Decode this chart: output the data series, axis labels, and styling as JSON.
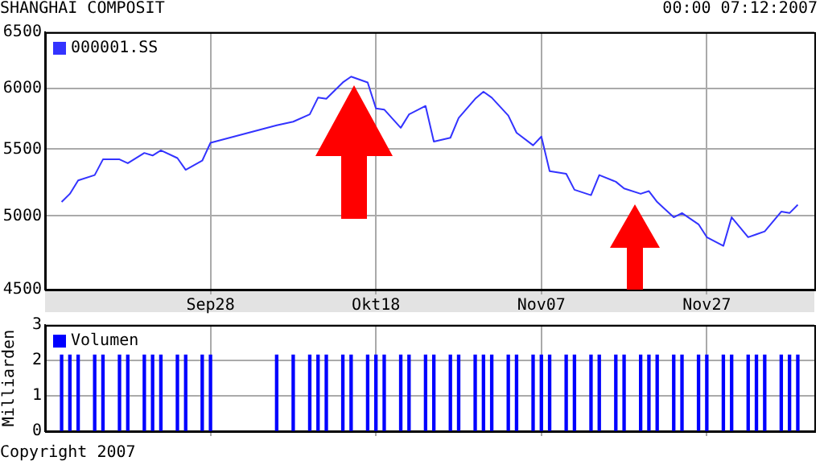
{
  "chart_data": [
    {
      "type": "line",
      "title": "SHANGHAI COMPOSIT",
      "annotations": [
        "00:00 07:12:2007"
      ],
      "x": [
        "2007-09-10",
        "2007-09-11",
        "2007-09-12",
        "2007-09-14",
        "2007-09-15",
        "2007-09-17",
        "2007-09-18",
        "2007-09-20",
        "2007-09-21",
        "2007-09-22",
        "2007-09-24",
        "2007-09-25",
        "2007-09-27",
        "2007-09-28",
        "2007-10-06",
        "2007-10-08",
        "2007-10-10",
        "2007-10-11",
        "2007-10-12",
        "2007-10-14",
        "2007-10-15",
        "2007-10-17",
        "2007-10-18",
        "2007-10-19",
        "2007-10-21",
        "2007-10-22",
        "2007-10-24",
        "2007-10-25",
        "2007-10-27",
        "2007-10-28",
        "2007-10-30",
        "2007-10-31",
        "2007-11-01",
        "2007-11-03",
        "2007-11-04",
        "2007-11-06",
        "2007-11-07",
        "2007-11-08",
        "2007-11-10",
        "2007-11-11",
        "2007-11-13",
        "2007-11-14",
        "2007-11-16",
        "2007-11-17",
        "2007-11-19",
        "2007-11-20",
        "2007-11-21",
        "2007-11-23",
        "2007-11-24",
        "2007-11-26",
        "2007-11-27",
        "2007-11-29",
        "2007-11-30",
        "2007-12-02",
        "2007-12-03",
        "2007-12-04",
        "2007-12-06",
        "2007-12-07",
        "2007-12-08"
      ],
      "series": [
        {
          "name": "000001.SS",
          "color": "#3333ff",
          "values": [
            5100,
            5160,
            5260,
            5300,
            5420,
            5420,
            5390,
            5470,
            5450,
            5490,
            5430,
            5340,
            5410,
            5550,
            5690,
            5720,
            5780,
            5920,
            5910,
            6050,
            6100,
            6050,
            5830,
            5820,
            5670,
            5780,
            5850,
            5560,
            5590,
            5750,
            5910,
            5970,
            5920,
            5770,
            5630,
            5530,
            5600,
            5330,
            5310,
            5190,
            5150,
            5300,
            5250,
            5200,
            5160,
            5180,
            5100,
            4990,
            5020,
            4940,
            4850,
            4790,
            4990,
            4850,
            4870,
            4890,
            5030,
            5020,
            5080
          ]
        }
      ],
      "xlim": [
        "2007-09-08",
        "2007-12-10"
      ],
      "xticks": [
        {
          "value": "2007-09-28",
          "label": "Sep28"
        },
        {
          "value": "2007-10-18",
          "label": "Okt18"
        },
        {
          "value": "2007-11-07",
          "label": "Nov07"
        },
        {
          "value": "2007-11-27",
          "label": "Nov27"
        }
      ],
      "ylim": [
        4500,
        6500
      ],
      "yticks": [
        4500,
        5000,
        5500,
        6000,
        6500
      ],
      "log": true,
      "grid": true,
      "legend": "top left"
    },
    {
      "type": "bar",
      "ylabel": "Milliarden",
      "annotations": [
        "Copyright 2007"
      ],
      "x": [
        "2007-09-10",
        "2007-09-11",
        "2007-09-12",
        "2007-09-14",
        "2007-09-15",
        "2007-09-17",
        "2007-09-18",
        "2007-09-20",
        "2007-09-21",
        "2007-09-22",
        "2007-09-24",
        "2007-09-25",
        "2007-09-27",
        "2007-09-28",
        "2007-10-06",
        "2007-10-08",
        "2007-10-10",
        "2007-10-11",
        "2007-10-12",
        "2007-10-14",
        "2007-10-15",
        "2007-10-17",
        "2007-10-18",
        "2007-10-19",
        "2007-10-21",
        "2007-10-22",
        "2007-10-24",
        "2007-10-25",
        "2007-10-27",
        "2007-10-28",
        "2007-10-30",
        "2007-10-31",
        "2007-11-01",
        "2007-11-03",
        "2007-11-04",
        "2007-11-06",
        "2007-11-07",
        "2007-11-08",
        "2007-11-10",
        "2007-11-11",
        "2007-11-13",
        "2007-11-14",
        "2007-11-16",
        "2007-11-17",
        "2007-11-19",
        "2007-11-20",
        "2007-11-21",
        "2007-11-23",
        "2007-11-24",
        "2007-11-26",
        "2007-11-27",
        "2007-11-29",
        "2007-11-30",
        "2007-12-02",
        "2007-12-03",
        "2007-12-04",
        "2007-12-06",
        "2007-12-07",
        "2007-12-08"
      ],
      "series": [
        {
          "name": "Volumen",
          "color": "#0000ff",
          "values": [
            2.15,
            2.15,
            2.15,
            2.15,
            2.15,
            2.15,
            2.15,
            2.15,
            2.15,
            2.15,
            2.15,
            2.15,
            2.15,
            2.15,
            2.15,
            2.15,
            2.15,
            2.15,
            2.15,
            2.15,
            2.15,
            2.15,
            2.15,
            2.15,
            2.15,
            2.15,
            2.15,
            2.15,
            2.15,
            2.15,
            2.15,
            2.15,
            2.15,
            2.15,
            2.15,
            2.15,
            2.15,
            2.15,
            2.15,
            2.15,
            2.15,
            2.15,
            2.15,
            2.15,
            2.15,
            2.15,
            2.15,
            2.15,
            2.15,
            2.15,
            2.15,
            2.15,
            2.15,
            2.15,
            2.15,
            2.15,
            2.15,
            2.15,
            2.15
          ]
        }
      ],
      "xlim": [
        "2007-09-08",
        "2007-12-10"
      ],
      "xticks": [
        {
          "value": "2007-09-28",
          "label": null
        },
        {
          "value": "2007-10-18",
          "label": null
        },
        {
          "value": "2007-11-07",
          "label": null
        },
        {
          "value": "2007-11-27",
          "label": null
        }
      ],
      "ylim": [
        0,
        3
      ],
      "yticks": [
        0,
        1,
        2,
        3
      ],
      "grid": true,
      "legend": "top left",
      "tick_labels": "y"
    }
  ]
}
